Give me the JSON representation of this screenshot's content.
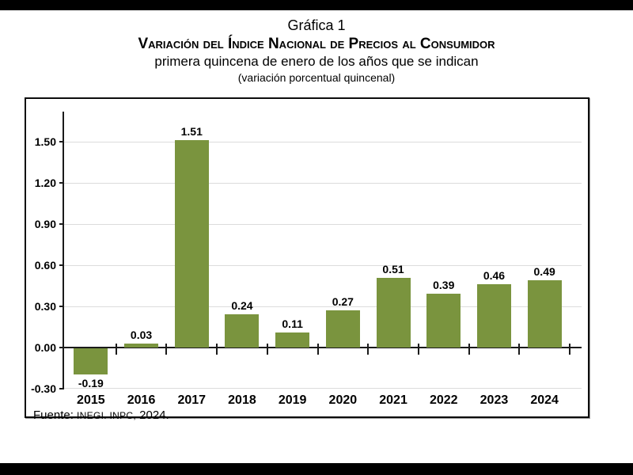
{
  "header": {
    "chart_number": "Gráfica 1",
    "title": "Variación del Índice Nacional de Precios al Consumidor",
    "subtitle": "primera quincena de enero de los años que se indican",
    "unit_note": "(variación porcentual quincenal)"
  },
  "chart_data": {
    "type": "bar",
    "title": "Gráfica 1. Variación del Índice Nacional de Precios al Consumidor, primera quincena de enero de los años que se indican (variación porcentual quincenal)",
    "categories": [
      "2015",
      "2016",
      "2017",
      "2018",
      "2019",
      "2020",
      "2021",
      "2022",
      "2023",
      "2024"
    ],
    "values": [
      -0.19,
      0.03,
      1.51,
      0.24,
      0.11,
      0.27,
      0.51,
      0.39,
      0.46,
      0.49
    ],
    "data_labels": [
      "-0.19",
      "0.03",
      "1.51",
      "0.24",
      "0.11",
      "0.27",
      "0.51",
      "0.39",
      "0.46",
      "0.49"
    ],
    "xlabel": "",
    "ylabel": "",
    "ylim": [
      -0.3,
      1.66
    ],
    "yticks": [
      -0.3,
      0.0,
      0.3,
      0.6,
      0.9,
      1.2,
      1.5
    ],
    "ytick_labels": [
      "-0.30",
      "0.00",
      "0.30",
      "0.60",
      "0.90",
      "1.20",
      "1.50"
    ],
    "grid": true,
    "legend": false,
    "bar_color": "#7A943E",
    "grid_color": "#dcdcdc",
    "axis_color": "#1a1a1a"
  },
  "footer": {
    "prefix": "Fuente: ",
    "acronym": "INEGI. INPC,",
    "year": " 2024."
  }
}
